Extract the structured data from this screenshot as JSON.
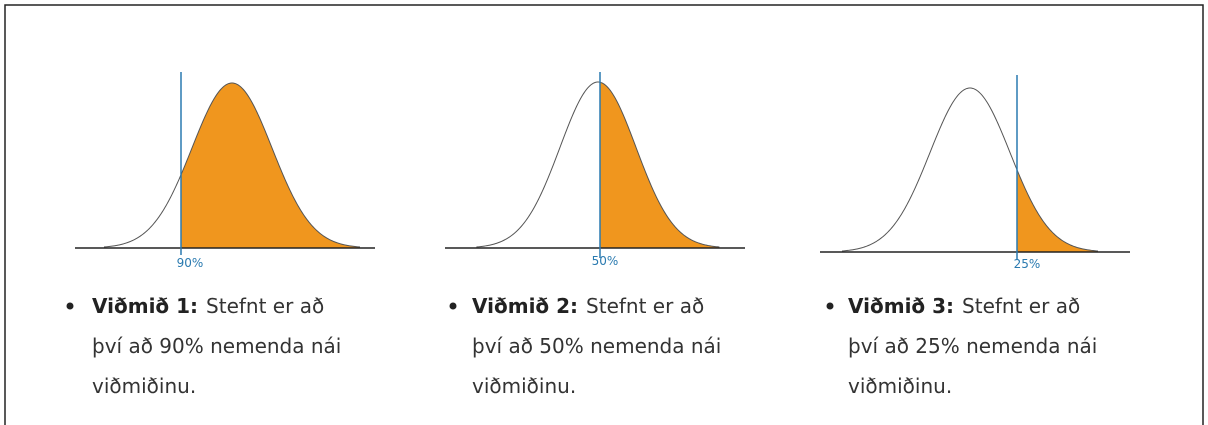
{
  "panels": [
    {
      "threshold_label": "90%",
      "bullet_title": "Viðmið 1:",
      "lines": [
        "Stefnt er að",
        "því að 90% nemenda nái",
        "viðmiðinu."
      ]
    },
    {
      "threshold_label": "50%",
      "bullet_title": "Viðmið 2:",
      "lines": [
        "Stefnt er að",
        "því að 50% nemenda nái",
        "viðmiðinu."
      ]
    },
    {
      "threshold_label": "25%",
      "bullet_title": "Viðmið 3:",
      "lines": [
        "Stefnt er að",
        "því að 25% nemenda nái",
        "viðmiðinu."
      ]
    }
  ]
}
